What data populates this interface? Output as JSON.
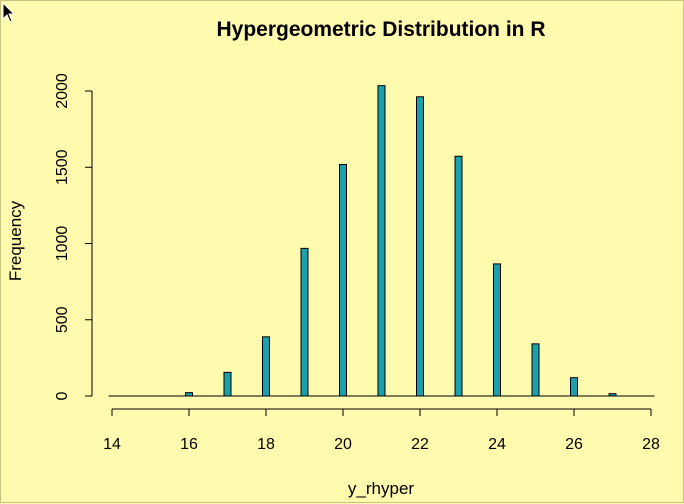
{
  "colors": {
    "background": "#fefaae",
    "bar_fill": "#1aa0ac",
    "bar_stroke": "#000000",
    "axis": "#000000"
  },
  "icons": {
    "cursor": "mouse-pointer-icon"
  },
  "chart_data": {
    "type": "bar",
    "title": "Hypergeometric Distribution in R",
    "xlabel": "y_rhyper",
    "ylabel": "Frequency",
    "x": [
      14,
      15,
      16,
      17,
      18,
      19,
      20,
      21,
      22,
      23,
      24,
      25,
      26,
      27,
      28
    ],
    "values": [
      0,
      5,
      22,
      155,
      388,
      968,
      1518,
      2035,
      1962,
      1572,
      866,
      342,
      120,
      15,
      2
    ],
    "xlim": [
      14,
      28
    ],
    "ylim": [
      0,
      2000
    ],
    "xticks": [
      14,
      16,
      18,
      20,
      22,
      24,
      26,
      28
    ],
    "yticks": [
      0,
      500,
      1000,
      1500,
      2000
    ],
    "xtick_labels": [
      "14",
      "16",
      "18",
      "20",
      "22",
      "24",
      "26",
      "28"
    ],
    "ytick_labels": [
      "0",
      "500",
      "1000",
      "1500",
      "2000"
    ],
    "grid": false,
    "legend": "none"
  }
}
